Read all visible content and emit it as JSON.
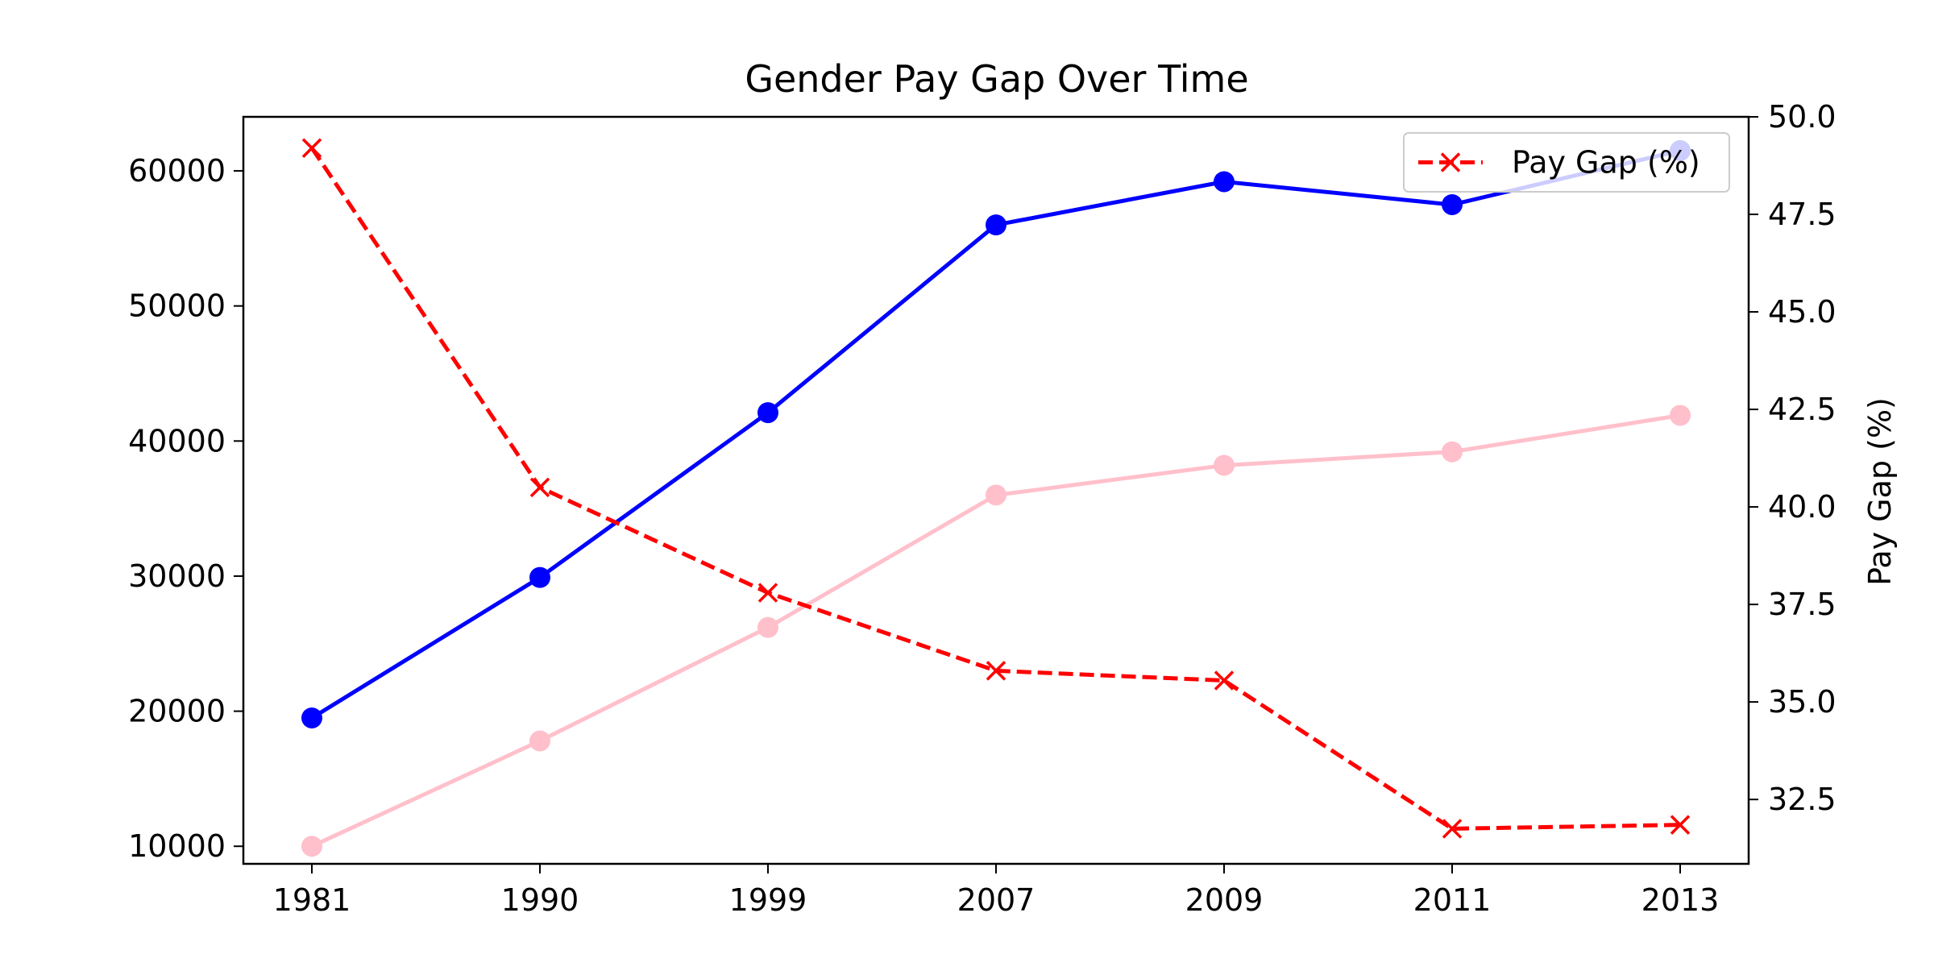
{
  "chart_data": {
    "type": "line",
    "title": "Gender Pay Gap Over Time",
    "xlabel": "",
    "ylabel_left": "",
    "ylabel_right": "Pay Gap (%)",
    "categories": [
      "1981",
      "1990",
      "1999",
      "2007",
      "2009",
      "2011",
      "2013"
    ],
    "y_left": {
      "ylim": [
        8700,
        64000
      ],
      "ticks": [
        10000,
        20000,
        30000,
        40000,
        50000,
        60000
      ],
      "tick_labels": [
        "10000",
        "20000",
        "30000",
        "40000",
        "50000",
        "60000"
      ]
    },
    "y_right": {
      "ylim": [
        30.85,
        50.0
      ],
      "ticks": [
        32.5,
        35.0,
        37.5,
        40.0,
        42.5,
        45.0,
        47.5,
        50.0
      ],
      "tick_labels": [
        "32.5",
        "35.0",
        "37.5",
        "40.0",
        "42.5",
        "45.0",
        "47.5",
        "50.0"
      ]
    },
    "grid": false,
    "legend_position": "top-right",
    "series": [
      {
        "axis": "left",
        "color": "#0000ff",
        "marker": "circle",
        "line_style": "solid",
        "values": [
          19500,
          29900,
          42100,
          56000,
          59200,
          57500,
          61500
        ]
      },
      {
        "axis": "left",
        "color": "#ffc0cb",
        "marker": "circle",
        "line_style": "solid",
        "values": [
          10000,
          17800,
          26200,
          36000,
          38200,
          39200,
          41900
        ]
      },
      {
        "name": "Pay Gap (%)",
        "axis": "right",
        "color": "#ff0000",
        "marker": "x",
        "line_style": "dashed",
        "values": [
          49.2,
          40.5,
          37.8,
          35.8,
          35.55,
          31.75,
          31.85
        ]
      }
    ]
  }
}
